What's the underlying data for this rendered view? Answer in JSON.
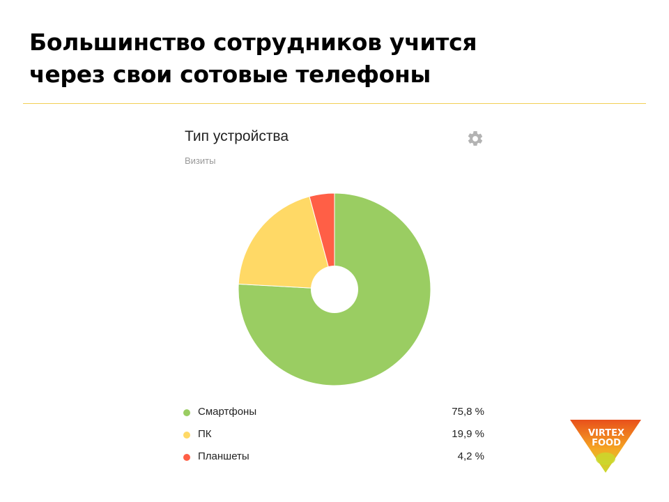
{
  "slide": {
    "title_line1": "Большинство сотрудников учится",
    "title_line2": "через свои сотовые телефоны"
  },
  "widget": {
    "title": "Тип устройства",
    "subtitle": "Визиты",
    "settings_icon": "gear-icon"
  },
  "chart_data": {
    "type": "pie",
    "title": "Тип устройства",
    "subtitle": "Визиты",
    "donut": true,
    "legend_position": "bottom",
    "categories": [
      "Смартфоны",
      "ПК",
      "Планшеты"
    ],
    "values": [
      75.8,
      19.9,
      4.2
    ],
    "value_labels": [
      "75,8 %",
      "19,9 %",
      "4,2 %"
    ],
    "colors": [
      "#9acd62",
      "#ffd966",
      "#ff5f46"
    ]
  },
  "logo": {
    "line1": "VIRTEX",
    "line2": "FOOD",
    "colors": [
      "#e8501b",
      "#f5a623",
      "#c9d92d"
    ]
  }
}
